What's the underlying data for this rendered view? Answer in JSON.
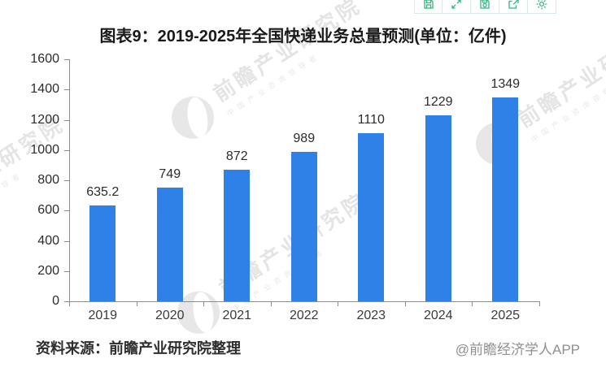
{
  "title": "图表9：2019-2025年全国快递业务总量预测(单位：亿件)",
  "toolbar": {
    "buttons": [
      {
        "name": "save"
      },
      {
        "name": "expand"
      },
      {
        "name": "save-image"
      },
      {
        "name": "export"
      },
      {
        "name": "settings"
      }
    ]
  },
  "chart_data": {
    "type": "bar",
    "title": "图表9：2019-2025年全国快递业务总量预测(单位：亿件)",
    "unit": "亿件",
    "categories": [
      "2019",
      "2020",
      "2021",
      "2022",
      "2023",
      "2024",
      "2025"
    ],
    "values": [
      635.2,
      749,
      872,
      989,
      1110,
      1229,
      1349
    ],
    "value_labels": [
      "635.2",
      "749",
      "872",
      "989",
      "1110",
      "1229",
      "1349"
    ],
    "xlabel": "",
    "ylabel": "",
    "ylim": [
      0,
      1600
    ],
    "y_ticks": [
      "0",
      "200",
      "400",
      "600",
      "800",
      "1000",
      "1200",
      "1400",
      "1600"
    ],
    "grid": false,
    "legend_position": "none",
    "bar_color": "#2F81E8"
  },
  "watermark": {
    "brand": "前瞻产业研究院",
    "tagline": "中国产业咨询领导者"
  },
  "footer": {
    "source": "资料来源：前瞻产业研究院整理",
    "credit": "@前瞻经济学人APP"
  },
  "colors": {
    "bar": "#2F81E8",
    "toolbar_icon": "#33b57e",
    "axis": "#8c8c8c",
    "title_text": "#1a1a1a",
    "label_text": "#2b2b2b",
    "credit_text": "#8f8f8f",
    "watermark": "#c7c7c7"
  }
}
